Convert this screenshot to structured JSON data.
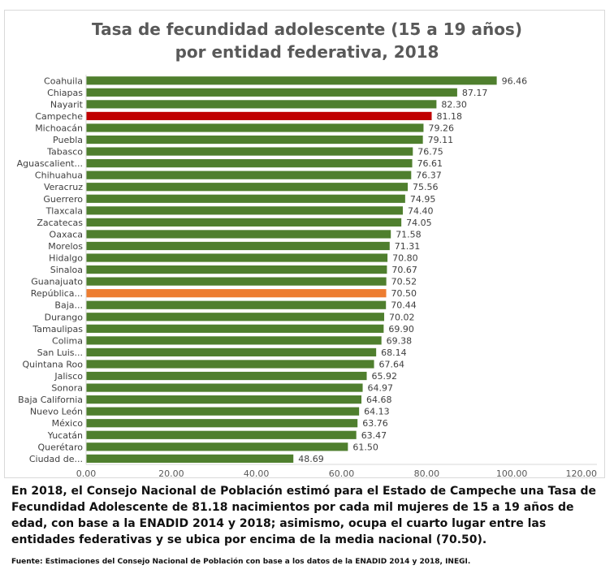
{
  "chart_data": {
    "type": "bar",
    "orientation": "horizontal",
    "title_line1": "Tasa de fecundidad adolescente (15 a 19 años)",
    "title_line2": "por entidad federativa, 2018",
    "categories": [
      "Coahuila",
      "Chiapas",
      "Nayarit",
      "Campeche",
      "Michoacán",
      "Puebla",
      "Tabasco",
      "Aguascalient...",
      "Chihuahua",
      "Veracruz",
      "Guerrero",
      "Tlaxcala",
      "Zacatecas",
      "Oaxaca",
      "Morelos",
      "Hidalgo",
      "Sinaloa",
      "Guanajuato",
      "República...",
      "Baja...",
      "Durango",
      "Tamaulipas",
      "Colima",
      "San Luis...",
      "Quintana Roo",
      "Jalisco",
      "Sonora",
      "Baja California",
      "Nuevo León",
      "México",
      "Yucatán",
      "Querétaro",
      "Ciudad de..."
    ],
    "values": [
      96.46,
      87.17,
      82.3,
      81.18,
      79.26,
      79.11,
      76.75,
      76.61,
      76.37,
      75.56,
      74.95,
      74.4,
      74.05,
      71.58,
      71.31,
      70.8,
      70.67,
      70.52,
      70.5,
      70.44,
      70.02,
      69.9,
      69.38,
      68.14,
      67.64,
      65.92,
      64.97,
      64.68,
      64.13,
      63.76,
      63.47,
      61.5,
      48.69
    ],
    "value_labels": [
      "96.46",
      "87.17",
      "82.30",
      "81.18",
      "79.26",
      "79.11",
      "76.75",
      "76.61",
      "76.37",
      "75.56",
      "74.95",
      "74.40",
      "74.05",
      "71.58",
      "71.31",
      "70.80",
      "70.67",
      "70.52",
      "70.50",
      "70.44",
      "70.02",
      "69.90",
      "69.38",
      "68.14",
      "67.64",
      "65.92",
      "64.97",
      "64.68",
      "64.13",
      "63.76",
      "63.47",
      "61.50",
      "48.69"
    ],
    "xlim": [
      0,
      120
    ],
    "x_ticks": [
      0,
      20,
      40,
      60,
      80,
      100,
      120
    ],
    "x_tick_labels": [
      "0.00",
      "20.00",
      "40.00",
      "60.00",
      "80.00",
      "100.00",
      "120.00"
    ],
    "grid": false,
    "legend": "none",
    "colors": {
      "default": "#4f7f2e",
      "highlight_Campeche": "#c00000",
      "highlight_República...": "#ed7d31"
    }
  },
  "caption": "En 2018, el Consejo Nacional de Población estimó para el Estado de Campeche una Tasa de Fecundidad Adolescente de 81.18 nacimientos por cada mil mujeres de 15 a 19 años de edad, con base a la ENADID 2014 y 2018; asimismo, ocupa el cuarto lugar entre las entidades federativas y se ubica por encima de la media nacional (70.50).",
  "source": "Fuente: Estimaciones del Consejo Nacional de Población con base a los datos de la ENADID 2014 y 2018, INEGI."
}
